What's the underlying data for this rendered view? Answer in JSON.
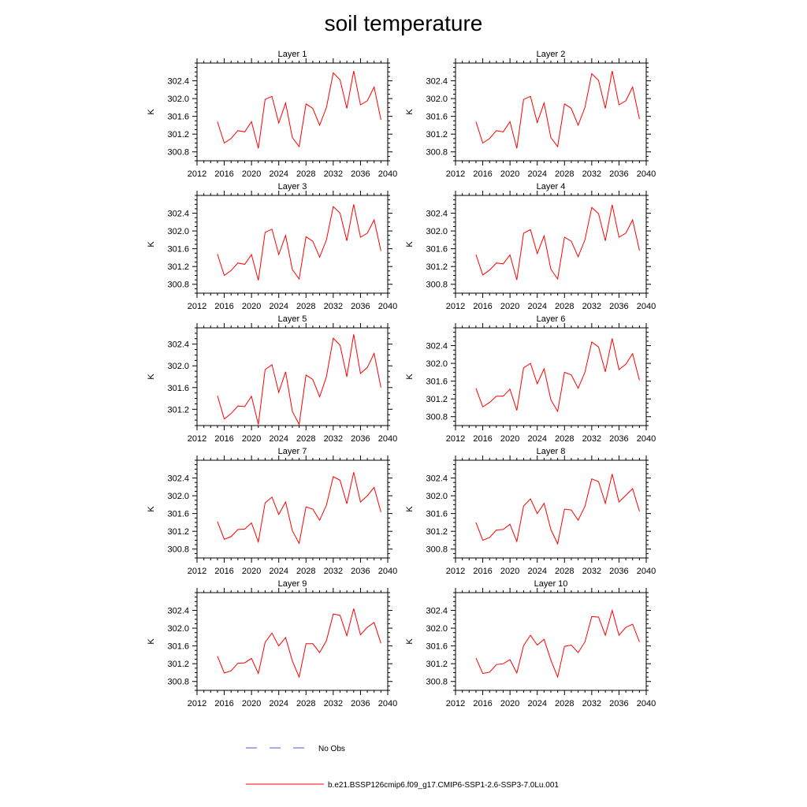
{
  "title": "soil temperature",
  "legend": {
    "obs_label": "No Obs",
    "obs_color": "#4a5bd6",
    "model_label": "b.e21.BSSP126cmip6.f09_g17.CMIP6-SSP1-2.6-SSP3-7.0Lu.001",
    "model_color": "#ff0000"
  },
  "chart_data": [
    {
      "type": "line",
      "title": "Layer 1",
      "ylabel": "K",
      "xlim": [
        2012,
        2040
      ],
      "ylim": [
        300.6,
        302.8
      ],
      "xticks": [
        2012,
        2016,
        2020,
        2024,
        2028,
        2032,
        2036,
        2040
      ],
      "yticks": [
        300.8,
        301.2,
        301.6,
        302.0,
        302.4
      ],
      "x": [
        2015,
        2016,
        2017,
        2018,
        2019,
        2020,
        2021,
        2022,
        2023,
        2024,
        2025,
        2026,
        2027,
        2028,
        2029,
        2030,
        2031,
        2032,
        2033,
        2034,
        2035,
        2036,
        2037,
        2038,
        2039
      ],
      "series": [
        {
          "values": [
            301.48,
            301.0,
            301.1,
            301.28,
            301.25,
            301.48,
            300.88,
            301.98,
            302.05,
            301.45,
            301.9,
            301.12,
            300.92,
            301.88,
            301.78,
            301.4,
            301.8,
            302.58,
            302.42,
            301.78,
            302.62,
            301.86,
            301.95,
            302.26,
            301.52
          ]
        }
      ]
    },
    {
      "type": "line",
      "title": "Layer 2",
      "ylabel": "K",
      "xlim": [
        2012,
        2040
      ],
      "ylim": [
        300.6,
        302.8
      ],
      "xticks": [
        2012,
        2016,
        2020,
        2024,
        2028,
        2032,
        2036,
        2040
      ],
      "yticks": [
        300.8,
        301.2,
        301.6,
        302.0,
        302.4
      ],
      "x": [
        2015,
        2016,
        2017,
        2018,
        2019,
        2020,
        2021,
        2022,
        2023,
        2024,
        2025,
        2026,
        2027,
        2028,
        2029,
        2030,
        2031,
        2032,
        2033,
        2034,
        2035,
        2036,
        2037,
        2038,
        2039
      ],
      "series": [
        {
          "values": [
            301.48,
            301.0,
            301.1,
            301.28,
            301.25,
            301.48,
            300.88,
            301.98,
            302.05,
            301.46,
            301.9,
            301.12,
            300.92,
            301.88,
            301.78,
            301.4,
            301.8,
            302.56,
            302.41,
            301.78,
            302.62,
            301.86,
            301.95,
            302.26,
            301.54
          ]
        }
      ]
    },
    {
      "type": "line",
      "title": "Layer 3",
      "ylabel": "K",
      "xlim": [
        2012,
        2040
      ],
      "ylim": [
        300.6,
        302.8
      ],
      "xticks": [
        2012,
        2016,
        2020,
        2024,
        2028,
        2032,
        2036,
        2040
      ],
      "yticks": [
        300.8,
        301.2,
        301.6,
        302.0,
        302.4
      ],
      "x": [
        2015,
        2016,
        2017,
        2018,
        2019,
        2020,
        2021,
        2022,
        2023,
        2024,
        2025,
        2026,
        2027,
        2028,
        2029,
        2030,
        2031,
        2032,
        2033,
        2034,
        2035,
        2036,
        2037,
        2038,
        2039
      ],
      "series": [
        {
          "values": [
            301.48,
            301.0,
            301.11,
            301.28,
            301.25,
            301.47,
            300.89,
            301.97,
            302.04,
            301.47,
            301.9,
            301.13,
            300.92,
            301.87,
            301.77,
            301.41,
            301.8,
            302.55,
            302.4,
            301.78,
            302.6,
            301.86,
            301.95,
            302.25,
            301.55
          ]
        }
      ]
    },
    {
      "type": "line",
      "title": "Layer 4",
      "ylabel": "K",
      "xlim": [
        2012,
        2040
      ],
      "ylim": [
        300.6,
        302.8
      ],
      "xticks": [
        2012,
        2016,
        2020,
        2024,
        2028,
        2032,
        2036,
        2040
      ],
      "yticks": [
        300.8,
        301.2,
        301.6,
        302.0,
        302.4
      ],
      "x": [
        2015,
        2016,
        2017,
        2018,
        2019,
        2020,
        2021,
        2022,
        2023,
        2024,
        2025,
        2026,
        2027,
        2028,
        2029,
        2030,
        2031,
        2032,
        2033,
        2034,
        2035,
        2036,
        2037,
        2038,
        2039
      ],
      "series": [
        {
          "values": [
            301.47,
            301.01,
            301.12,
            301.28,
            301.26,
            301.46,
            300.9,
            301.95,
            302.03,
            301.49,
            301.89,
            301.14,
            300.92,
            301.86,
            301.77,
            301.42,
            301.8,
            302.53,
            302.39,
            301.78,
            302.59,
            301.86,
            301.95,
            302.25,
            301.56
          ]
        }
      ]
    },
    {
      "type": "line",
      "title": "Layer 5",
      "ylabel": "K",
      "xlim": [
        2012,
        2040
      ],
      "ylim": [
        300.9,
        302.7
      ],
      "xticks": [
        2012,
        2016,
        2020,
        2024,
        2028,
        2032,
        2036,
        2040
      ],
      "yticks": [
        301.2,
        301.6,
        302.0,
        302.4
      ],
      "x": [
        2015,
        2016,
        2017,
        2018,
        2019,
        2020,
        2021,
        2022,
        2023,
        2024,
        2025,
        2026,
        2027,
        2028,
        2029,
        2030,
        2031,
        2032,
        2033,
        2034,
        2035,
        2036,
        2037,
        2038,
        2039
      ],
      "series": [
        {
          "values": [
            301.45,
            301.02,
            301.12,
            301.26,
            301.25,
            301.44,
            300.92,
            301.93,
            302.02,
            301.51,
            301.89,
            301.16,
            300.92,
            301.83,
            301.75,
            301.43,
            301.8,
            302.51,
            302.38,
            301.8,
            302.58,
            301.86,
            301.97,
            302.23,
            301.6
          ]
        }
      ]
    },
    {
      "type": "line",
      "title": "Layer 6",
      "ylabel": "K",
      "xlim": [
        2012,
        2040
      ],
      "ylim": [
        300.6,
        302.8
      ],
      "xticks": [
        2012,
        2016,
        2020,
        2024,
        2028,
        2032,
        2036,
        2040
      ],
      "yticks": [
        300.8,
        301.2,
        301.6,
        302.0,
        302.4
      ],
      "x": [
        2015,
        2016,
        2017,
        2018,
        2019,
        2020,
        2021,
        2022,
        2023,
        2024,
        2025,
        2026,
        2027,
        2028,
        2029,
        2030,
        2031,
        2032,
        2033,
        2034,
        2035,
        2036,
        2037,
        2038,
        2039
      ],
      "series": [
        {
          "values": [
            301.44,
            301.02,
            301.12,
            301.26,
            301.26,
            301.42,
            300.94,
            301.9,
            302.0,
            301.54,
            301.88,
            301.18,
            300.92,
            301.8,
            301.74,
            301.44,
            301.8,
            302.48,
            302.37,
            301.81,
            302.56,
            301.86,
            301.98,
            302.22,
            301.62
          ]
        }
      ]
    },
    {
      "type": "line",
      "title": "Layer 7",
      "ylabel": "K",
      "xlim": [
        2012,
        2040
      ],
      "ylim": [
        300.6,
        302.8
      ],
      "xticks": [
        2012,
        2016,
        2020,
        2024,
        2028,
        2032,
        2036,
        2040
      ],
      "yticks": [
        300.8,
        301.2,
        301.6,
        302.0,
        302.4
      ],
      "x": [
        2015,
        2016,
        2017,
        2018,
        2019,
        2020,
        2021,
        2022,
        2023,
        2024,
        2025,
        2026,
        2027,
        2028,
        2029,
        2030,
        2031,
        2032,
        2033,
        2034,
        2035,
        2036,
        2037,
        2038,
        2039
      ],
      "series": [
        {
          "values": [
            301.42,
            301.02,
            301.08,
            301.24,
            301.25,
            301.39,
            300.96,
            301.84,
            301.97,
            301.58,
            301.86,
            301.21,
            300.93,
            301.75,
            301.7,
            301.45,
            301.79,
            302.43,
            302.35,
            301.82,
            302.53,
            301.86,
            302.0,
            302.19,
            301.63
          ]
        }
      ]
    },
    {
      "type": "line",
      "title": "Layer 8",
      "ylabel": "K",
      "xlim": [
        2012,
        2040
      ],
      "ylim": [
        300.6,
        302.8
      ],
      "xticks": [
        2012,
        2016,
        2020,
        2024,
        2028,
        2032,
        2036,
        2040
      ],
      "yticks": [
        300.8,
        301.2,
        301.6,
        302.0,
        302.4
      ],
      "x": [
        2015,
        2016,
        2017,
        2018,
        2019,
        2020,
        2021,
        2022,
        2023,
        2024,
        2025,
        2026,
        2027,
        2028,
        2029,
        2030,
        2031,
        2032,
        2033,
        2034,
        2035,
        2036,
        2037,
        2038,
        2039
      ],
      "series": [
        {
          "values": [
            301.4,
            301.0,
            301.06,
            301.23,
            301.24,
            301.36,
            300.97,
            301.77,
            301.93,
            301.6,
            301.83,
            301.24,
            300.92,
            301.7,
            301.68,
            301.45,
            301.76,
            302.38,
            302.32,
            301.83,
            302.49,
            301.86,
            302.01,
            302.16,
            301.65
          ]
        }
      ]
    },
    {
      "type": "line",
      "title": "Layer 9",
      "ylabel": "K",
      "xlim": [
        2012,
        2040
      ],
      "ylim": [
        300.6,
        302.8
      ],
      "xticks": [
        2012,
        2016,
        2020,
        2024,
        2028,
        2032,
        2036,
        2040
      ],
      "yticks": [
        300.8,
        301.2,
        301.6,
        302.0,
        302.4
      ],
      "x": [
        2015,
        2016,
        2017,
        2018,
        2019,
        2020,
        2021,
        2022,
        2023,
        2024,
        2025,
        2026,
        2027,
        2028,
        2029,
        2030,
        2031,
        2032,
        2033,
        2034,
        2035,
        2036,
        2037,
        2038,
        2039
      ],
      "series": [
        {
          "values": [
            301.37,
            300.99,
            301.04,
            301.21,
            301.22,
            301.32,
            300.98,
            301.68,
            301.89,
            301.6,
            301.79,
            301.26,
            300.9,
            301.65,
            301.65,
            301.45,
            301.72,
            302.32,
            302.29,
            301.83,
            302.44,
            301.85,
            302.02,
            302.13,
            301.66
          ]
        }
      ]
    },
    {
      "type": "line",
      "title": "Layer 10",
      "ylabel": "K",
      "xlim": [
        2012,
        2040
      ],
      "ylim": [
        300.6,
        302.8
      ],
      "xticks": [
        2012,
        2016,
        2020,
        2024,
        2028,
        2032,
        2036,
        2040
      ],
      "yticks": [
        300.8,
        301.2,
        301.6,
        302.0,
        302.4
      ],
      "x": [
        2015,
        2016,
        2017,
        2018,
        2019,
        2020,
        2021,
        2022,
        2023,
        2024,
        2025,
        2026,
        2027,
        2028,
        2029,
        2030,
        2031,
        2032,
        2033,
        2034,
        2035,
        2036,
        2037,
        2038,
        2039
      ],
      "series": [
        {
          "values": [
            301.33,
            300.98,
            301.01,
            301.18,
            301.2,
            301.29,
            300.99,
            301.61,
            301.84,
            301.62,
            301.75,
            301.28,
            300.9,
            301.59,
            301.62,
            301.45,
            301.69,
            302.26,
            302.25,
            301.84,
            302.4,
            301.84,
            302.02,
            302.09,
            301.69
          ]
        }
      ]
    }
  ]
}
